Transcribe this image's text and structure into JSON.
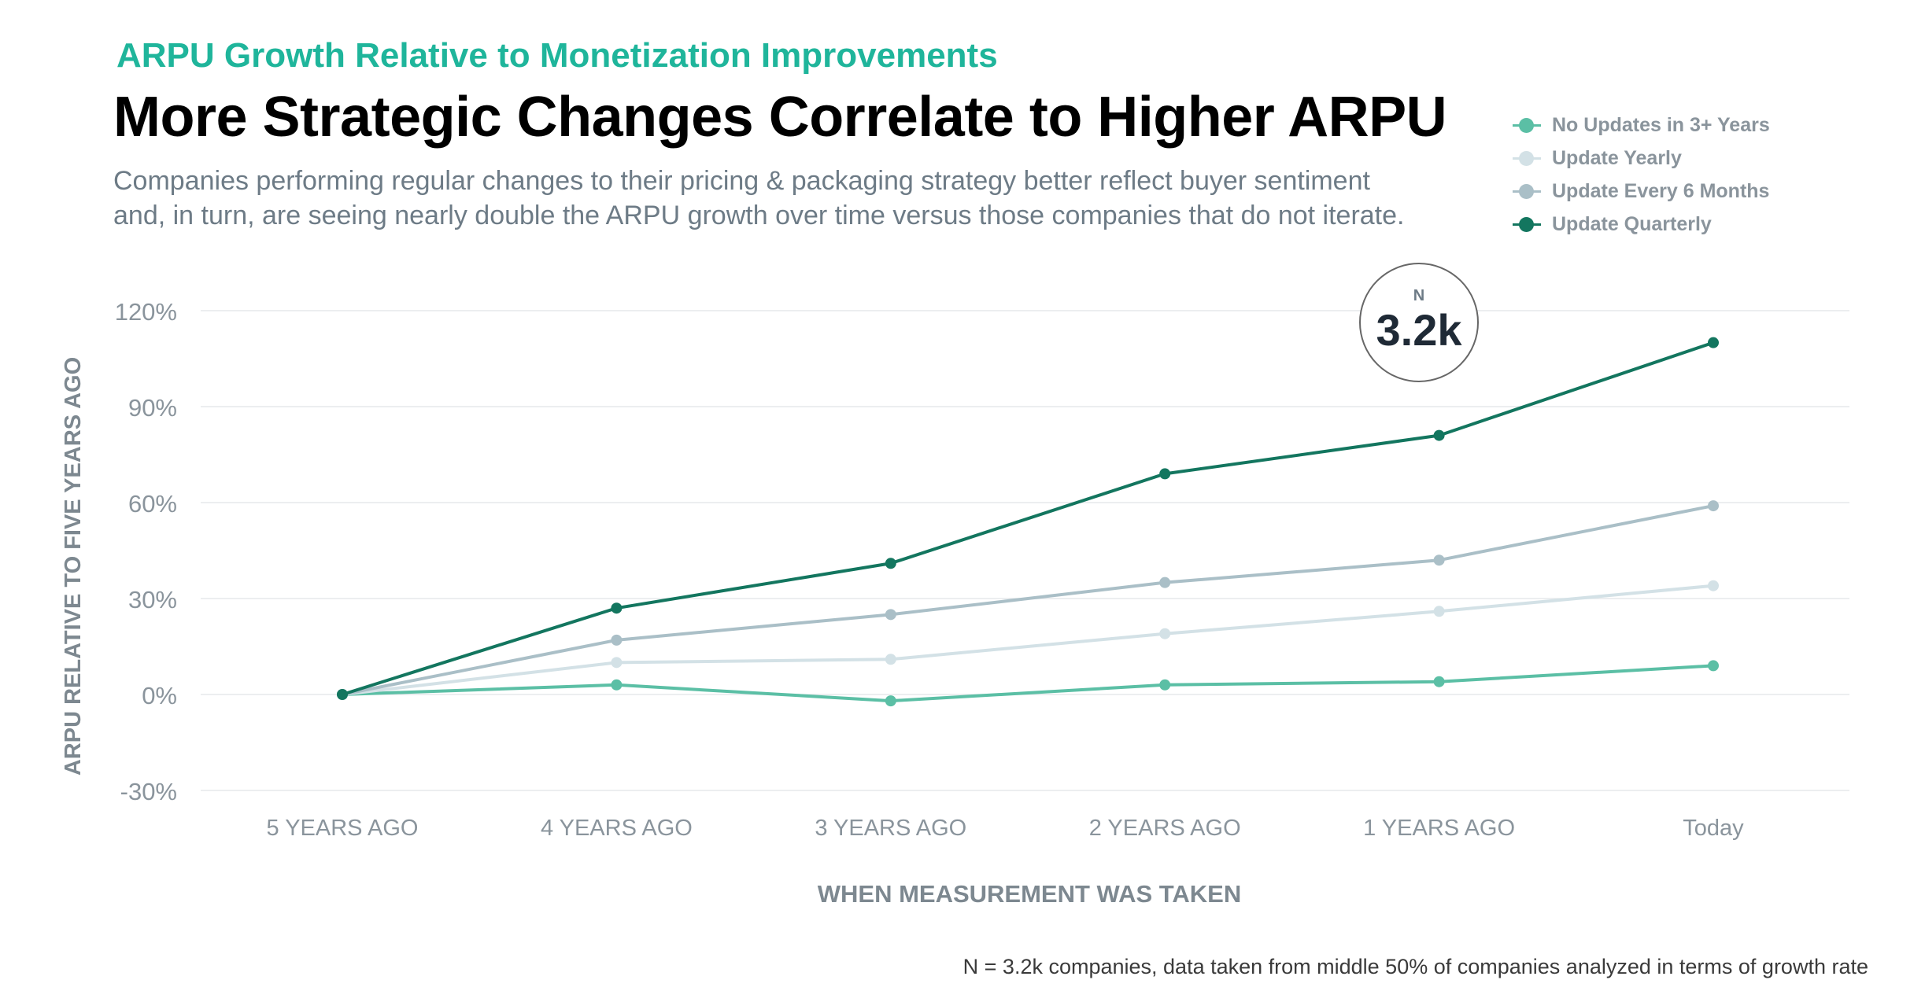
{
  "header": {
    "kicker": "ARPU Growth Relative to Monetization Improvements",
    "title": "More Strategic Changes Correlate to Higher ARPU",
    "subtitle": "Companies performing regular changes to their pricing & packaging strategy better reflect buyer sentiment and, in turn, are seeing nearly double the ARPU growth over time versus those companies that do not iterate."
  },
  "badge": {
    "label": "N",
    "value": "3.2k"
  },
  "footnote": "N = 3.2k companies, data taken from middle 50% of companies analyzed in terms of growth rate",
  "chart_data": {
    "type": "line",
    "categories": [
      "5 YEARS AGO",
      "4 YEARS AGO",
      "3 YEARS AGO",
      "2 YEARS AGO",
      "1 YEARS AGO",
      "Today"
    ],
    "xlabel": "WHEN MEASUREMENT WAS TAKEN",
    "ylabel": "ARPU RELATIVE TO FIVE YEARS AGO",
    "ylim": [
      -30,
      120
    ],
    "yticks": [
      -30,
      0,
      30,
      60,
      90,
      120
    ],
    "ytick_labels": [
      "-30%",
      "0%",
      "30%",
      "60%",
      "90%",
      "120%"
    ],
    "grid": true,
    "legend_position": "top-right",
    "series": [
      {
        "name": "No Updates in 3+ Years",
        "color": "#5bbfa5",
        "values": [
          0,
          3,
          -2,
          3,
          4,
          9
        ]
      },
      {
        "name": "Update Yearly",
        "color": "#d3e1e6",
        "values": [
          0,
          10,
          11,
          19,
          26,
          34
        ]
      },
      {
        "name": "Update Every 6 Months",
        "color": "#aabfc7",
        "values": [
          0,
          17,
          25,
          35,
          42,
          59
        ]
      },
      {
        "name": "Update Quarterly",
        "color": "#13765f",
        "values": [
          0,
          27,
          41,
          69,
          81,
          110
        ]
      }
    ]
  }
}
